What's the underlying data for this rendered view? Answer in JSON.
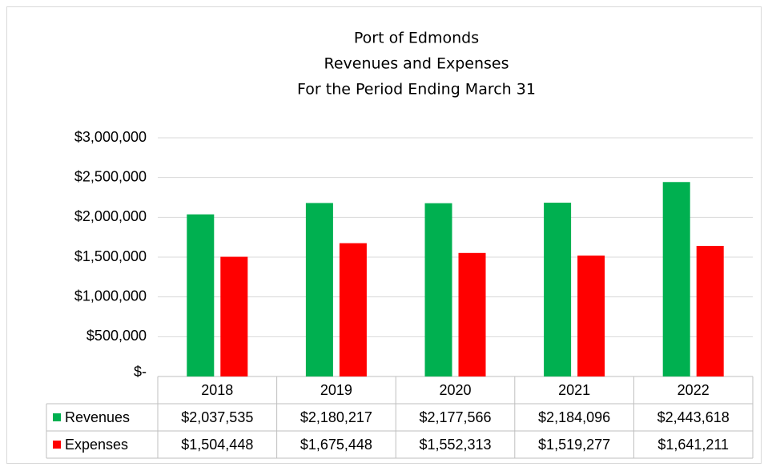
{
  "chart_data": {
    "type": "bar",
    "title": [
      "Port of Edmonds",
      "Revenues and Expenses",
      "For the Period Ending March 31"
    ],
    "categories": [
      "2018",
      "2019",
      "2020",
      "2021",
      "2022"
    ],
    "series": [
      {
        "name": "Revenues",
        "color": "#00b050",
        "values": [
          2037535,
          2180217,
          2177566,
          2184096,
          2443618
        ],
        "value_labels": [
          "$2,037,535",
          "$2,180,217",
          "$2,177,566",
          "$2,184,096",
          "$2,443,618"
        ]
      },
      {
        "name": "Expenses",
        "color": "#ff0000",
        "values": [
          1504448,
          1675448,
          1552313,
          1519277,
          1641211
        ],
        "value_labels": [
          "$1,504,448",
          "$1,675,448",
          "$1,552,313",
          "$1,519,277",
          "$1,641,211"
        ]
      }
    ],
    "ylim": [
      0,
      3000000
    ],
    "yticks": [
      {
        "value": 0,
        "label": "$-"
      },
      {
        "value": 500000,
        "label": "$500,000"
      },
      {
        "value": 1000000,
        "label": "$1,000,000"
      },
      {
        "value": 1500000,
        "label": "$1,500,000"
      },
      {
        "value": 2000000,
        "label": "$2,000,000"
      },
      {
        "value": 2500000,
        "label": "$2,500,000"
      },
      {
        "value": 3000000,
        "label": "$3,000,000"
      }
    ],
    "grid": true,
    "legend": "table"
  }
}
